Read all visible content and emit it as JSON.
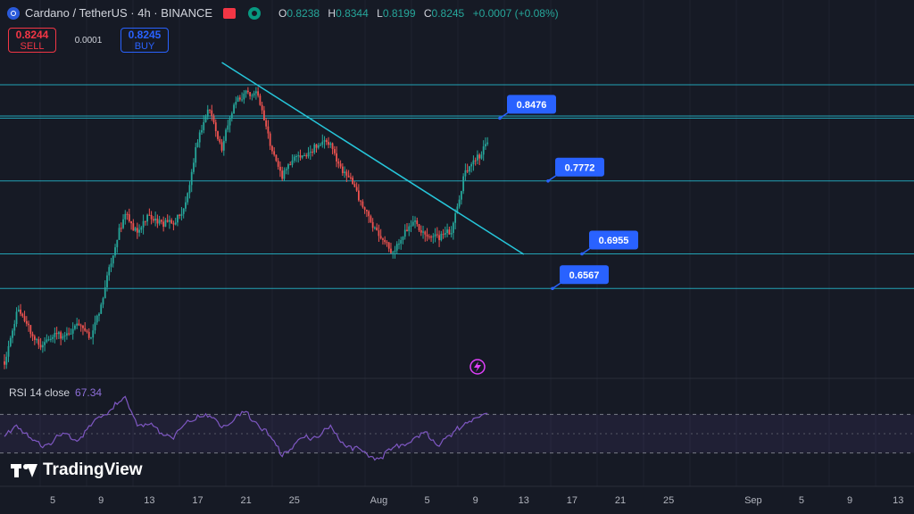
{
  "header": {
    "symbol": "Cardano / TetherUS · 4h · BINANCE",
    "open_label": "O",
    "open": "0.8238",
    "high_label": "H",
    "high": "0.8344",
    "low_label": "L",
    "low": "0.8199",
    "close_label": "C",
    "close": "0.8245",
    "change": "+0.0007 (+0.08%)"
  },
  "trade": {
    "sell_price": "0.8244",
    "sell_label": "SELL",
    "spread": "0.0001",
    "buy_price": "0.8245",
    "buy_label": "BUY"
  },
  "rsi": {
    "label": "RSI 14 close",
    "value": "67.34"
  },
  "logo": {
    "text": "TradingView"
  },
  "colors": {
    "up": "#26a69a",
    "down": "#ef5350",
    "level_line": "#26c6da",
    "callout": "#2962ff",
    "rsi": "#7e57c2",
    "alert": "#e040fb"
  },
  "chart_data": {
    "type": "candlestick",
    "price_ylim": [
      0.56,
      0.92
    ],
    "x_tick_labels": [
      "5",
      "9",
      "13",
      "17",
      "21",
      "25",
      "Aug",
      "5",
      "9",
      "13",
      "17",
      "21",
      "25",
      "Sep",
      "5",
      "9",
      "13"
    ],
    "horizontal_levels": [
      0.8476,
      0.7772,
      0.6955,
      0.6567,
      0.885,
      0.85
    ],
    "level_callouts": [
      "0.8476",
      "0.7772",
      "0.6955",
      "0.6567"
    ],
    "trendline": {
      "from": [
        "Jul 19",
        0.91
      ],
      "to": [
        "Aug 13",
        0.695
      ]
    },
    "price_path": [
      [
        "Jul 1",
        0.575
      ],
      [
        "Jul 2",
        0.63
      ],
      [
        "Jul 4",
        0.595
      ],
      [
        "Jul 5",
        0.6
      ],
      [
        "Jul 7",
        0.615
      ],
      [
        "Jul 8",
        0.6
      ],
      [
        "Jul 9",
        0.64
      ],
      [
        "Jul 11",
        0.745
      ],
      [
        "Jul 12",
        0.715
      ],
      [
        "Jul 13",
        0.74
      ],
      [
        "Jul 15",
        0.725
      ],
      [
        "Jul 16",
        0.755
      ],
      [
        "Jul 17",
        0.82
      ],
      [
        "Jul 18",
        0.86
      ],
      [
        "Jul 19",
        0.815
      ],
      [
        "Jul 20",
        0.86
      ],
      [
        "Jul 21",
        0.88
      ],
      [
        "Jul 22",
        0.87
      ],
      [
        "Jul 23",
        0.82
      ],
      [
        "Jul 24",
        0.785
      ],
      [
        "Jul 25",
        0.8
      ],
      [
        "Jul 26",
        0.81
      ],
      [
        "Jul 27",
        0.815
      ],
      [
        "Jul 28",
        0.82
      ],
      [
        "Jul 29",
        0.79
      ],
      [
        "Jul 31",
        0.745
      ],
      [
        "Aug 1",
        0.715
      ],
      [
        "Aug 2",
        0.7
      ],
      [
        "Aug 3",
        0.715
      ],
      [
        "Aug 4",
        0.73
      ],
      [
        "Aug 6",
        0.71
      ],
      [
        "Aug 7",
        0.725
      ],
      [
        "Aug 8",
        0.78
      ],
      [
        "Aug 9",
        0.8
      ],
      [
        "Aug 10",
        0.8245
      ]
    ],
    "rsi_series": {
      "name": "RSI 14 close",
      "ylim": [
        0,
        100
      ],
      "bands": [
        70,
        30
      ],
      "path": [
        [
          "Jul 1",
          45
        ],
        [
          "Jul 2",
          62
        ],
        [
          "Jul 3",
          45
        ],
        [
          "Jul 4",
          38
        ],
        [
          "Jul 5",
          42
        ],
        [
          "Jul 6",
          50
        ],
        [
          "Jul 7",
          44
        ],
        [
          "Jul 8",
          56
        ],
        [
          "Jul 9",
          68
        ],
        [
          "Jul 10",
          78
        ],
        [
          "Jul 11",
          85
        ],
        [
          "Jul 12",
          62
        ],
        [
          "Jul 13",
          58
        ],
        [
          "Jul 14",
          52
        ],
        [
          "Jul 15",
          48
        ],
        [
          "Jul 16",
          60
        ],
        [
          "Jul 17",
          70
        ],
        [
          "Jul 18",
          66
        ],
        [
          "Jul 19",
          60
        ],
        [
          "Jul 20",
          64
        ],
        [
          "Jul 21",
          72
        ],
        [
          "Jul 22",
          62
        ],
        [
          "Jul 23",
          45
        ],
        [
          "Jul 24",
          30
        ],
        [
          "Jul 25",
          38
        ],
        [
          "Jul 26",
          45
        ],
        [
          "Jul 27",
          50
        ],
        [
          "Jul 28",
          55
        ],
        [
          "Jul 29",
          42
        ],
        [
          "Jul 30",
          35
        ],
        [
          "Jul 31",
          28
        ],
        [
          "Aug 1",
          25
        ],
        [
          "Aug 2",
          32
        ],
        [
          "Aug 3",
          40
        ],
        [
          "Aug 4",
          44
        ],
        [
          "Aug 5",
          50
        ],
        [
          "Aug 6",
          40
        ],
        [
          "Aug 7",
          46
        ],
        [
          "Aug 8",
          62
        ],
        [
          "Aug 9",
          66
        ],
        [
          "Aug 10",
          67.34
        ]
      ]
    }
  }
}
